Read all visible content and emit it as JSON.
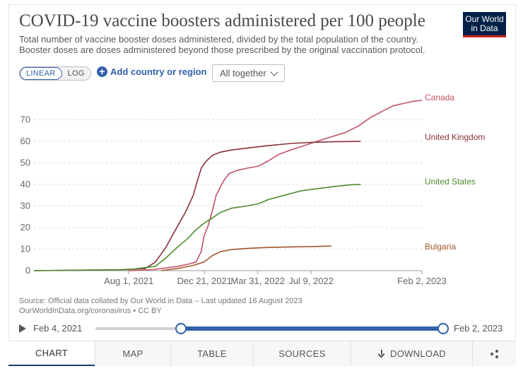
{
  "header": {
    "title": "COVID-19 vaccine boosters administered per 100 people",
    "subtitle": "Total number of vaccine booster doses administered, divided by the total population of the country. Booster doses are doses administered beyond those prescribed by the original vaccination protocol.",
    "logo_line1": "Our World",
    "logo_line2": "in Data",
    "logo_color": "#002147",
    "logo_accent": "#ce261e"
  },
  "controls": {
    "linear_label": "LINEAR",
    "log_label": "LOG",
    "add_country_label": "Add country or region",
    "facet_selected": "All together"
  },
  "chart_data": {
    "type": "line",
    "title": "COVID-19 vaccine boosters administered per 100 people",
    "x_tick_labels": [
      "Aug 1, 2021",
      "Dec 21, 2021",
      "Mar 31, 2022",
      "Jul 9, 2022",
      "Feb 2, 2023"
    ],
    "x_tick_dates": [
      "2021-08-01",
      "2021-12-21",
      "2022-03-31",
      "2022-07-09",
      "2023-02-02"
    ],
    "xlim": [
      "2021-02-04",
      "2023-02-02"
    ],
    "ylim": [
      0,
      80
    ],
    "y_ticks": [
      0,
      10,
      20,
      30,
      40,
      50,
      60,
      70
    ],
    "grid": "horizontal dashed",
    "legend": "line-end labels",
    "series": [
      {
        "name": "Canada",
        "color": "#c15065",
        "x": [
          "2021-08-01",
          "2021-09-15",
          "2021-11-01",
          "2021-11-20",
          "2021-12-05",
          "2021-12-15",
          "2021-12-20",
          "2021-12-28",
          "2022-01-05",
          "2022-01-12",
          "2022-01-20",
          "2022-01-27",
          "2022-02-05",
          "2022-02-20",
          "2022-03-10",
          "2022-04-01",
          "2022-04-20",
          "2022-05-10",
          "2022-06-01",
          "2022-06-20",
          "2022-07-20",
          "2022-08-15",
          "2022-09-10",
          "2022-10-05",
          "2022-10-28",
          "2022-11-20",
          "2022-12-10",
          "2022-12-28",
          "2023-01-15",
          "2023-02-02"
        ],
        "y": [
          0,
          0.5,
          2,
          3,
          4,
          9,
          16,
          21,
          28,
          35,
          39,
          42,
          45,
          46.5,
          47.5,
          48.5,
          51,
          54,
          56,
          57.5,
          60,
          62,
          64,
          67,
          71,
          74,
          76.5,
          77.5,
          78.5,
          79
        ]
      },
      {
        "name": "United Kingdom",
        "color": "#883039",
        "x": [
          "2021-02-04",
          "2021-07-15",
          "2021-09-01",
          "2021-09-20",
          "2021-10-10",
          "2021-10-30",
          "2021-11-15",
          "2021-11-30",
          "2021-12-08",
          "2021-12-15",
          "2021-12-19",
          "2021-12-25",
          "2022-01-05",
          "2022-01-20",
          "2022-02-10",
          "2022-03-15",
          "2022-04-20",
          "2022-06-01",
          "2022-07-10",
          "2022-08-20",
          "2022-10-10"
        ],
        "y": [
          0,
          0.4,
          1,
          4,
          11,
          20,
          27,
          35,
          42,
          47.5,
          49,
          51,
          53.5,
          55,
          56,
          57,
          58,
          59,
          59.5,
          59.8,
          60
        ]
      },
      {
        "name": "United States",
        "color": "#4c8c2b",
        "x": [
          "2021-02-04",
          "2021-08-01",
          "2021-09-20",
          "2021-10-10",
          "2021-11-01",
          "2021-11-20",
          "2021-12-05",
          "2021-12-20",
          "2022-01-05",
          "2022-01-20",
          "2022-02-10",
          "2022-03-10",
          "2022-04-01",
          "2022-04-20",
          "2022-05-20",
          "2022-06-20",
          "2022-07-20",
          "2022-08-20",
          "2022-09-20",
          "2022-10-10"
        ],
        "y": [
          0,
          0.5,
          2,
          6,
          11,
          15,
          19,
          22,
          24.5,
          27,
          29,
          30,
          31,
          33,
          35,
          37,
          38,
          39,
          39.8,
          40
        ]
      },
      {
        "name": "Bulgaria",
        "color": "#a2562a",
        "x": [
          "2021-10-01",
          "2021-11-01",
          "2021-12-01",
          "2021-12-20",
          "2022-01-05",
          "2022-01-20",
          "2022-02-10",
          "2022-03-10",
          "2022-04-20",
          "2022-06-01",
          "2022-07-15",
          "2022-08-16"
        ],
        "y": [
          0,
          1,
          2.5,
          4,
          7,
          8.8,
          9.8,
          10.3,
          10.8,
          11,
          11.2,
          11.4
        ]
      }
    ]
  },
  "footer": {
    "source_line1": "Source: Official data collated by Our World in Data – Last updated 16 August 2023",
    "source_line2": "OurWorldInData.org/coronavirus • CC BY"
  },
  "timeline": {
    "start_label": "Feb 4, 2021",
    "end_label": "Feb 2, 2023"
  },
  "tabs": [
    {
      "label": "CHART"
    },
    {
      "label": "MAP"
    },
    {
      "label": "TABLE"
    },
    {
      "label": "SOURCES"
    },
    {
      "label": "DOWNLOAD"
    }
  ],
  "icons": {
    "add": "plus-circle-icon",
    "play": "play-icon",
    "download": "download-icon",
    "share": "share-icon",
    "dropdown": "chevron-down-icon"
  }
}
